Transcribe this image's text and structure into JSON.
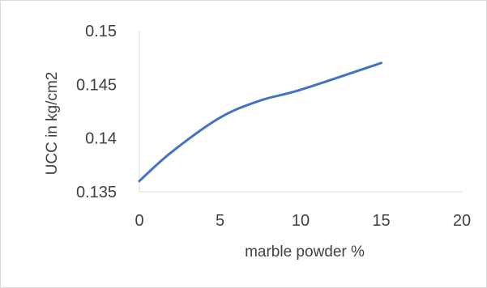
{
  "chart_data": {
    "type": "line",
    "title": "",
    "xlabel": "marble powder %",
    "ylabel": "UCC in kg/cm2",
    "xlim": [
      0,
      20
    ],
    "ylim": [
      0.135,
      0.15
    ],
    "x_ticks": [
      "0",
      "5",
      "10",
      "15",
      "20"
    ],
    "y_ticks": [
      "0.135",
      "0.14",
      "0.145",
      "0.15"
    ],
    "grid": false,
    "legend": "none",
    "series": [
      {
        "color": "#4472c4",
        "x": [
          0,
          2,
          5,
          7.5,
          10,
          15
        ],
        "y": [
          0.136,
          0.1387,
          0.1419,
          0.1435,
          0.1445,
          0.147
        ]
      }
    ]
  }
}
